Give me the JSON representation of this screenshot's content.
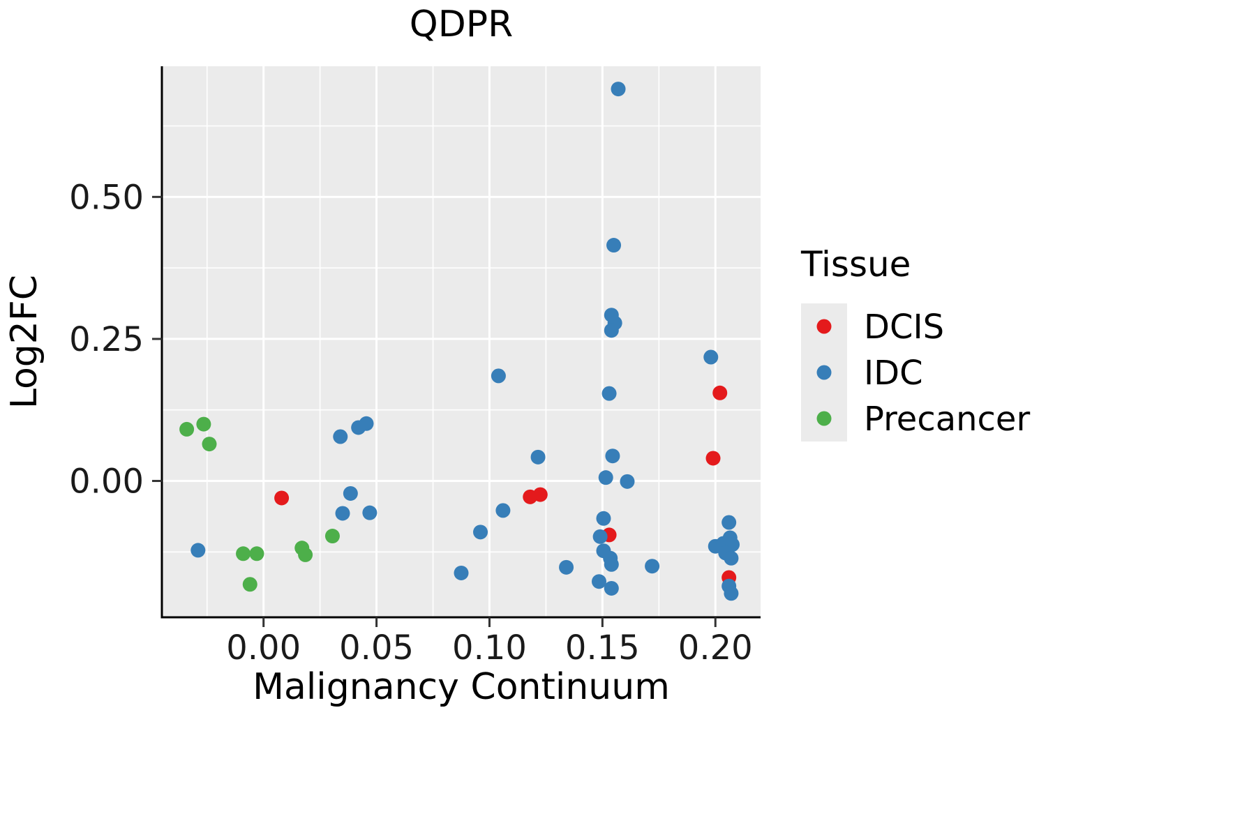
{
  "chart_data": {
    "type": "scatter",
    "title": "QDPR",
    "xlabel": "Malignancy Continuum",
    "ylabel": "Log2FC",
    "xlim": [
      -0.045,
      0.22
    ],
    "ylim": [
      -0.24,
      0.73
    ],
    "x_ticks": [
      0.0,
      0.05,
      0.1,
      0.15,
      0.2
    ],
    "x_tick_labels": [
      "0.00",
      "0.05",
      "0.10",
      "0.15",
      "0.20"
    ],
    "y_ticks": [
      0.0,
      0.25,
      0.5
    ],
    "y_tick_labels": [
      "0.00",
      "0.25",
      "0.50"
    ],
    "grid": "major and minor white gridlines on gray panel",
    "style": {
      "panel_bg": "#EBEBEB",
      "grid_color": "#FFFFFF",
      "axis_color": "#000000",
      "point_radius": 10.5
    },
    "legend": {
      "title": "Tissue",
      "position": "right",
      "entries": [
        {
          "label": "DCIS",
          "color": "#E41A1C"
        },
        {
          "label": "IDC",
          "color": "#377EB8"
        },
        {
          "label": "Precancer",
          "color": "#4DAF4A"
        }
      ]
    },
    "series": [
      {
        "name": "DCIS",
        "color": "#E41A1C",
        "points": [
          [
            0.008,
            -0.03
          ],
          [
            0.118,
            -0.028
          ],
          [
            0.1225,
            -0.024
          ],
          [
            0.153,
            -0.095
          ],
          [
            0.199,
            0.04
          ],
          [
            0.202,
            0.155
          ],
          [
            0.206,
            -0.17
          ]
        ]
      },
      {
        "name": "IDC",
        "color": "#377EB8",
        "points": [
          [
            -0.029,
            -0.122
          ],
          [
            0.034,
            0.078
          ],
          [
            0.042,
            0.094
          ],
          [
            0.0455,
            0.101
          ],
          [
            0.035,
            -0.057
          ],
          [
            0.0385,
            -0.022
          ],
          [
            0.047,
            -0.056
          ],
          [
            0.0875,
            -0.162
          ],
          [
            0.096,
            -0.09
          ],
          [
            0.104,
            0.185
          ],
          [
            0.106,
            -0.052
          ],
          [
            0.1215,
            0.042
          ],
          [
            0.134,
            -0.152
          ],
          [
            0.157,
            0.69
          ],
          [
            0.155,
            0.415
          ],
          [
            0.154,
            0.292
          ],
          [
            0.1555,
            0.278
          ],
          [
            0.154,
            0.265
          ],
          [
            0.153,
            0.154
          ],
          [
            0.1545,
            0.044
          ],
          [
            0.1515,
            0.006
          ],
          [
            0.161,
            -0.001
          ],
          [
            0.1505,
            -0.066
          ],
          [
            0.149,
            -0.098
          ],
          [
            0.1505,
            -0.123
          ],
          [
            0.1535,
            -0.136
          ],
          [
            0.154,
            -0.147
          ],
          [
            0.1485,
            -0.177
          ],
          [
            0.154,
            -0.189
          ],
          [
            0.172,
            -0.15
          ],
          [
            0.198,
            0.218
          ],
          [
            0.2,
            -0.115
          ],
          [
            0.2035,
            -0.11
          ],
          [
            0.206,
            -0.073
          ],
          [
            0.2065,
            -0.1
          ],
          [
            0.2075,
            -0.112
          ],
          [
            0.2045,
            -0.127
          ],
          [
            0.207,
            -0.136
          ],
          [
            0.206,
            -0.185
          ],
          [
            0.207,
            -0.198
          ]
        ]
      },
      {
        "name": "Precancer",
        "color": "#4DAF4A",
        "points": [
          [
            -0.034,
            0.091
          ],
          [
            -0.0265,
            0.1
          ],
          [
            -0.024,
            0.065
          ],
          [
            -0.009,
            -0.128
          ],
          [
            -0.003,
            -0.128
          ],
          [
            -0.006,
            -0.182
          ],
          [
            0.017,
            -0.118
          ],
          [
            0.0185,
            -0.13
          ],
          [
            0.0305,
            -0.097
          ]
        ]
      }
    ]
  }
}
